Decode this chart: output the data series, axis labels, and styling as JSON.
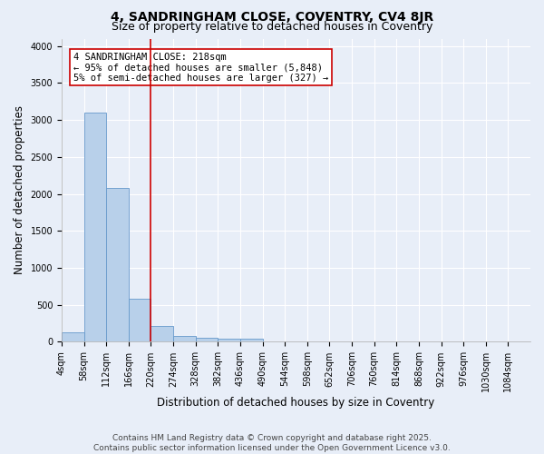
{
  "title_line1": "4, SANDRINGHAM CLOSE, COVENTRY, CV4 8JR",
  "title_line2": "Size of property relative to detached houses in Coventry",
  "xlabel": "Distribution of detached houses by size in Coventry",
  "ylabel": "Number of detached properties",
  "bar_color": "#b8d0ea",
  "bar_edge_color": "#6699cc",
  "background_color": "#e8eef8",
  "grid_color": "#ffffff",
  "bins": [
    4,
    58,
    112,
    166,
    220,
    274,
    328,
    382,
    436,
    490,
    544,
    598,
    652,
    706,
    760,
    814,
    868,
    922,
    976,
    1030,
    1084
  ],
  "bin_labels": [
    "4sqm",
    "58sqm",
    "112sqm",
    "166sqm",
    "220sqm",
    "274sqm",
    "328sqm",
    "382sqm",
    "436sqm",
    "490sqm",
    "544sqm",
    "598sqm",
    "652sqm",
    "706sqm",
    "760sqm",
    "814sqm",
    "868sqm",
    "922sqm",
    "976sqm",
    "1030sqm",
    "1084sqm"
  ],
  "bar_heights": [
    130,
    3100,
    2080,
    580,
    210,
    75,
    50,
    40,
    40,
    5,
    0,
    0,
    0,
    0,
    0,
    0,
    0,
    0,
    0,
    0
  ],
  "property_size": 218,
  "vline_color": "#cc0000",
  "annotation_text": "4 SANDRINGHAM CLOSE: 218sqm\n← 95% of detached houses are smaller (5,848)\n5% of semi-detached houses are larger (327) →",
  "annotation_box_color": "#ffffff",
  "annotation_box_edge_color": "#cc0000",
  "ylim": [
    0,
    4100
  ],
  "yticks": [
    0,
    500,
    1000,
    1500,
    2000,
    2500,
    3000,
    3500,
    4000
  ],
  "footer_line1": "Contains HM Land Registry data © Crown copyright and database right 2025.",
  "footer_line2": "Contains public sector information licensed under the Open Government Licence v3.0.",
  "title_fontsize": 10,
  "subtitle_fontsize": 9,
  "axis_label_fontsize": 8.5,
  "tick_fontsize": 7,
  "annotation_fontsize": 7.5,
  "footer_fontsize": 6.5
}
